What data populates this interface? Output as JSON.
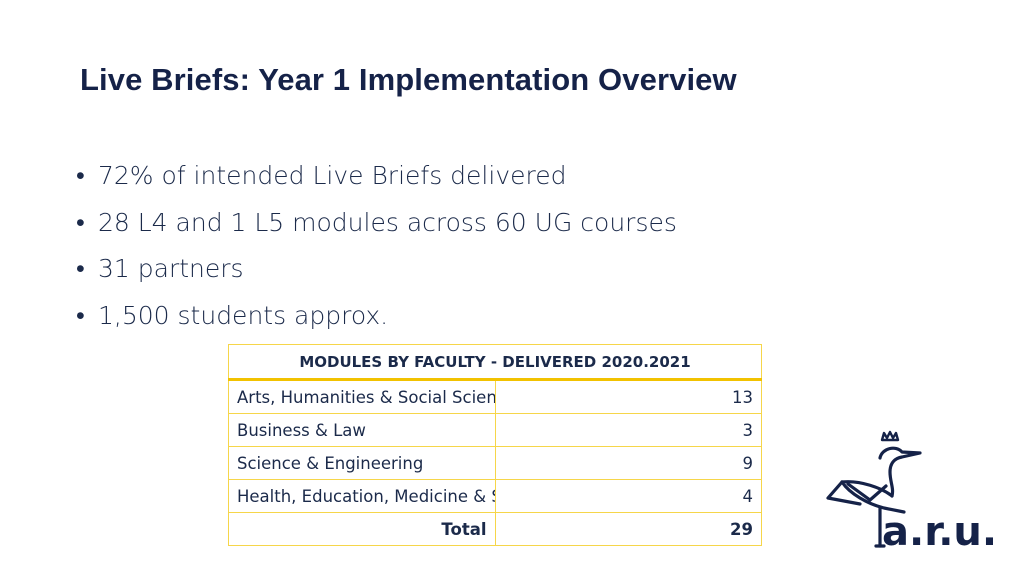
{
  "slide": {
    "title": "Live Briefs: Year 1 Implementation Overview",
    "bullet_char": "•",
    "bullets": [
      "72% of intended Live Briefs delivered",
      "28 L4 and 1 L5 modules across 60 UG courses",
      "31 partners",
      "1,500 students approx."
    ]
  },
  "table": {
    "header": "MODULES BY FACULTY - DELIVERED 2020.2021",
    "rows": [
      {
        "faculty": "Arts, Humanities & Social Sciences",
        "count": "13"
      },
      {
        "faculty": "Business & Law",
        "count": "3"
      },
      {
        "faculty": "Science & Engineering",
        "count": "9"
      },
      {
        "faculty": "Health, Education, Medicine & Social Care",
        "count": "4"
      }
    ],
    "total_label": "Total",
    "total_value": "29"
  },
  "logo": {
    "text": "a.r.u.",
    "icon": "heron-crown-icon"
  },
  "colors": {
    "title": "#152248",
    "text": "#1b2a4a",
    "table_border": "#f6d64a",
    "header_rule": "#f2c200"
  }
}
